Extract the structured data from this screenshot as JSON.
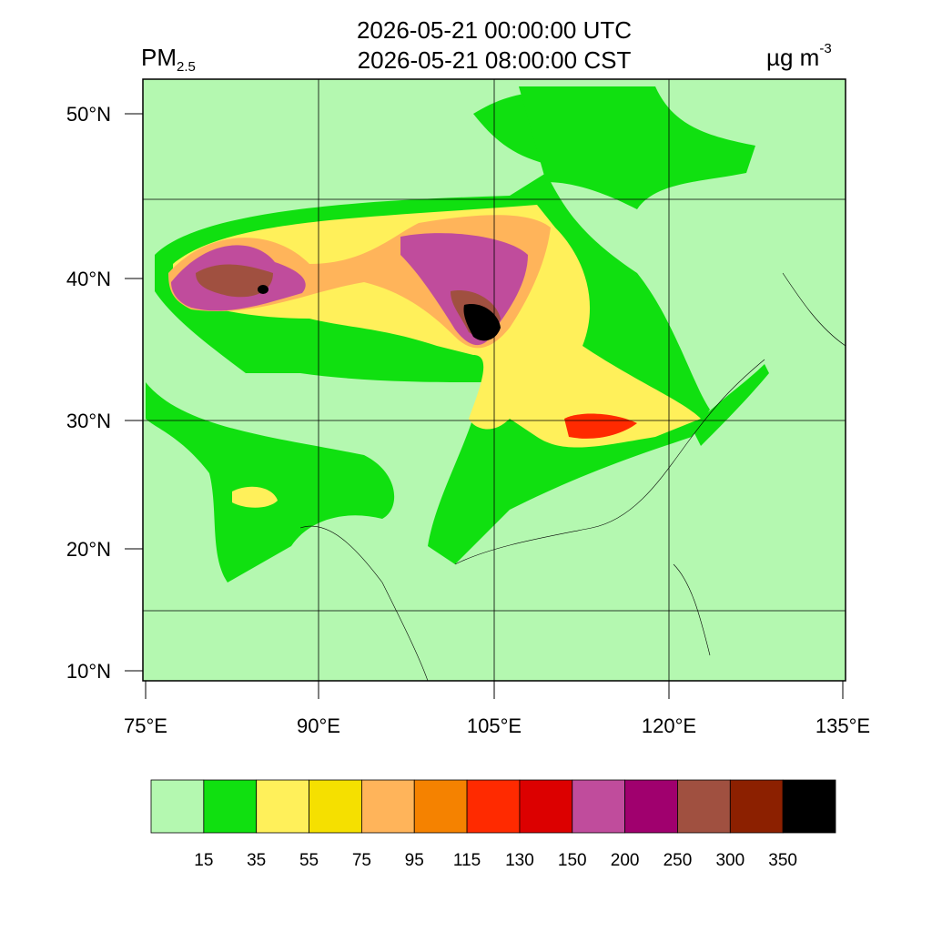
{
  "header": {
    "title_utc": "2026-05-21 00:00:00 UTC",
    "title_local": "2026-05-21 08:00:00 CST",
    "variable": "PM",
    "variable_subscript": "2.5",
    "unit": "µg m",
    "unit_superscript": "-3"
  },
  "map": {
    "lat_labels": [
      "50°N",
      "40°N",
      "30°N",
      "20°N",
      "10°N"
    ],
    "lon_labels": [
      "75°E",
      "90°E",
      "105°E",
      "120°E",
      "135°E"
    ]
  },
  "colorbar": {
    "colors": [
      "#b4f8b0",
      "#10e010",
      "#fff05a",
      "#f5e000",
      "#ffb45a",
      "#f58200",
      "#ff2a00",
      "#dc0000",
      "#c04c9c",
      "#a0006e",
      "#a05040",
      "#8c2000",
      "#000000"
    ],
    "levels": [
      15,
      35,
      55,
      75,
      95,
      115,
      130,
      150,
      200,
      250,
      300,
      350
    ]
  }
}
